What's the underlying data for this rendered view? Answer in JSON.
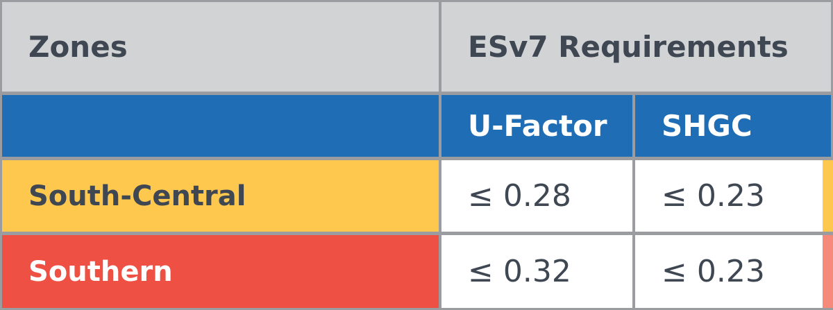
{
  "table": {
    "header": {
      "zones_label": "Zones",
      "requirements_label": "ESv7 Requirements"
    },
    "subheader": {
      "u_factor_label": "U-Factor",
      "shgc_label": "SHGC"
    },
    "rows": [
      {
        "zone": "South-Central",
        "u_factor": "≤ 0.28",
        "shgc": "≤ 0.23",
        "color": "#fec84e"
      },
      {
        "zone": "Southern",
        "u_factor": "≤ 0.32",
        "shgc": "≤ 0.23",
        "color": "#ef5044"
      }
    ]
  },
  "colors": {
    "header_bg": "#d2d3d5",
    "subheader_bg": "#1f6db5",
    "text_dark": "#3f4753",
    "border": "#9a9c9f"
  }
}
